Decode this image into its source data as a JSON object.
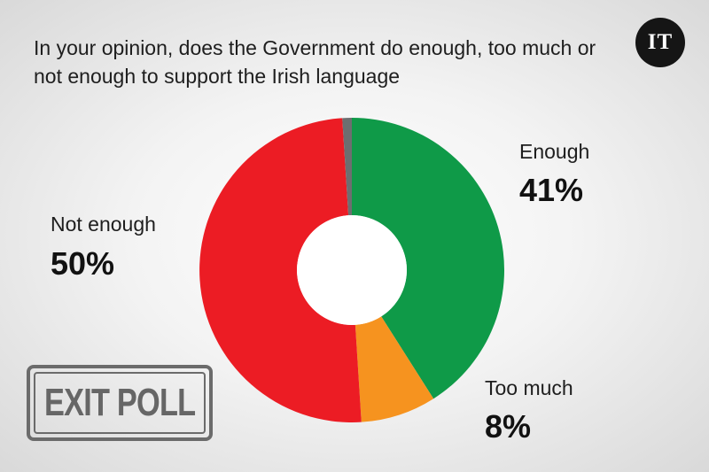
{
  "chart_data": {
    "type": "pie",
    "title": "In your opinion, does the Government do enough, too much or not enough to support the Irish language",
    "categories": [
      "Enough",
      "Too much",
      "Not enough",
      ""
    ],
    "values": [
      41,
      8,
      50,
      1
    ],
    "labels": [
      "41%",
      "8%",
      "50%",
      ""
    ],
    "colors": [
      "#0f9a48",
      "#f6931f",
      "#ec1c24",
      "#6d6e70"
    ],
    "donut": true
  },
  "logo": "IT",
  "stamp": "EXIT POLL"
}
